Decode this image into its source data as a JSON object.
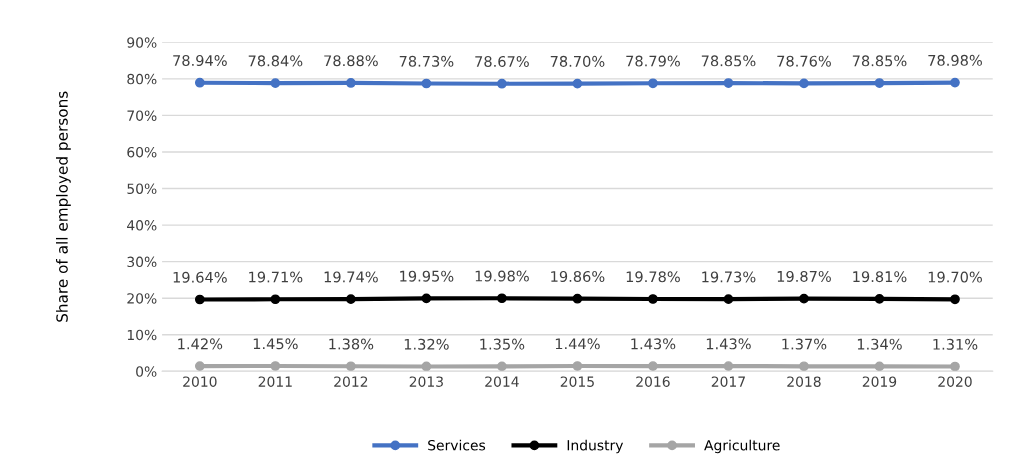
{
  "chart_data": {
    "type": "line",
    "ylabel": "Share of all employed persons",
    "categories": [
      "2010",
      "2011",
      "2012",
      "2013",
      "2014",
      "2015",
      "2016",
      "2017",
      "2018",
      "2019",
      "2020"
    ],
    "series": [
      {
        "name": "Services",
        "color": "#4472c4",
        "values": [
          78.94,
          78.84,
          78.88,
          78.73,
          78.67,
          78.7,
          78.79,
          78.85,
          78.76,
          78.85,
          78.98
        ],
        "value_labels": [
          "78.94%",
          "78.84%",
          "78.88%",
          "78.73%",
          "78.67%",
          "78.70%",
          "78.79%",
          "78.85%",
          "78.76%",
          "78.85%",
          "78.98%"
        ]
      },
      {
        "name": "Industry",
        "color": "#000000",
        "values": [
          19.64,
          19.71,
          19.74,
          19.95,
          19.98,
          19.86,
          19.78,
          19.73,
          19.87,
          19.81,
          19.7
        ],
        "value_labels": [
          "19.64%",
          "19.71%",
          "19.74%",
          "19.95%",
          "19.98%",
          "19.86%",
          "19.78%",
          "19.73%",
          "19.87%",
          "19.81%",
          "19.70%"
        ]
      },
      {
        "name": "Agriculture",
        "color": "#a5a5a5",
        "values": [
          1.42,
          1.45,
          1.38,
          1.32,
          1.35,
          1.44,
          1.43,
          1.43,
          1.37,
          1.34,
          1.31
        ],
        "value_labels": [
          "1.42%",
          "1.45%",
          "1.38%",
          "1.32%",
          "1.35%",
          "1.44%",
          "1.43%",
          "1.43%",
          "1.37%",
          "1.34%",
          "1.31%"
        ]
      }
    ],
    "ylim": [
      0,
      90
    ],
    "yticks": [
      {
        "value": 0,
        "label": "0%"
      },
      {
        "value": 10,
        "label": "10%"
      },
      {
        "value": 20,
        "label": "20%"
      },
      {
        "value": 30,
        "label": "30%"
      },
      {
        "value": 40,
        "label": "40%"
      },
      {
        "value": 50,
        "label": "50%"
      },
      {
        "value": 60,
        "label": "60%"
      },
      {
        "value": 70,
        "label": "70%"
      },
      {
        "value": 80,
        "label": "80%"
      },
      {
        "value": 90,
        "label": "90%"
      }
    ],
    "grid": "y",
    "legend": "bottom",
    "marker": "circle",
    "line_style": "solid"
  }
}
